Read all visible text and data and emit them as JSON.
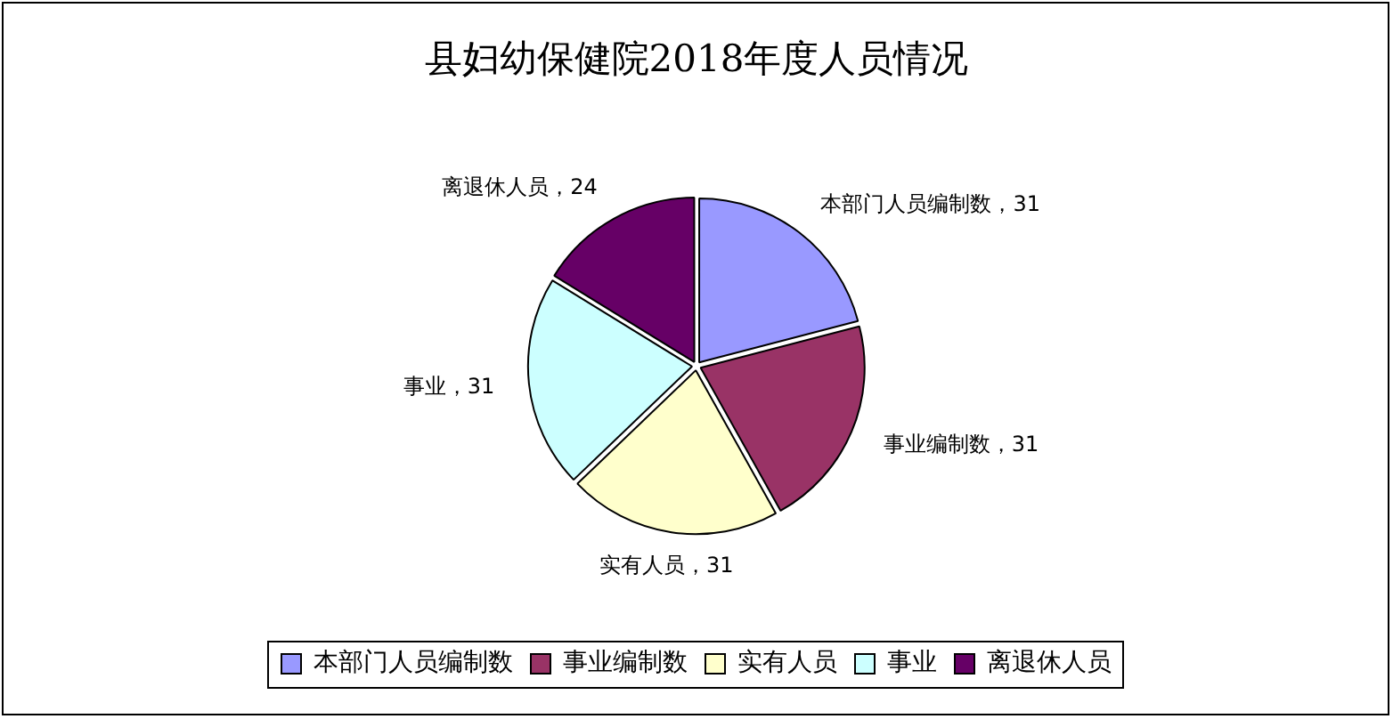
{
  "chart_data": {
    "type": "pie",
    "title": "县妇幼保健院2018年度人员情况",
    "categories": [
      "本部门人员编制数",
      "事业编制数",
      "实有人员",
      "事业",
      "离退休人员"
    ],
    "values": [
      31,
      31,
      31,
      31,
      24
    ],
    "colors": [
      "#9999ff",
      "#993366",
      "#ffffcc",
      "#ccffff",
      "#660066"
    ],
    "value_labels": [
      "本部门人员编制数，31",
      "事业编制数，31",
      "实有人员，31",
      "事业，31",
      "离退休人员，24"
    ],
    "legend": "bottom"
  }
}
